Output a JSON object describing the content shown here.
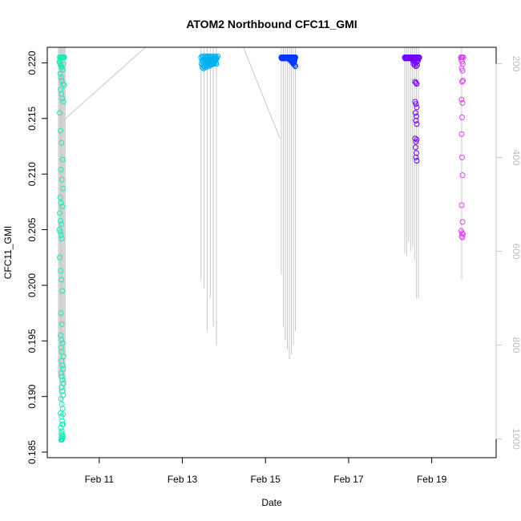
{
  "chart_data": {
    "type": "scatter",
    "title": "ATOM2 Northbound CFC11_GMI",
    "xlabel": "Date",
    "ylabel": "CFC11_GMI",
    "x_ticks": [
      "Feb 11",
      "Feb 13",
      "Feb 15",
      "Feb 17",
      "Feb 19"
    ],
    "x_tick_days": [
      11,
      13,
      15,
      17,
      19
    ],
    "xlim_days": [
      9.75,
      20.55
    ],
    "y_ticks": [
      0.185,
      0.19,
      0.195,
      0.2,
      0.205,
      0.21,
      0.215,
      0.22
    ],
    "ylim": [
      0.1845,
      0.2214
    ],
    "secondary_y_ticks": [
      200,
      400,
      600,
      800,
      1000
    ],
    "secondary_ylim": [
      1040,
      165
    ],
    "grid": false,
    "marker": "open-circle",
    "flight_track_color": "#c8c8c8",
    "series": [
      {
        "color": "#1de9b6",
        "day": 10.15,
        "x": [
          10.05,
          10.06,
          10.07,
          10.08,
          10.09,
          10.1,
          10.11,
          10.12,
          10.13,
          10.14,
          10.15,
          10.16,
          10.04,
          10.05,
          10.06,
          10.07,
          10.08,
          10.1,
          10.12,
          10.14,
          10.06,
          10.08,
          10.1,
          10.13,
          10.16,
          10.07,
          10.09,
          10.11,
          10.14,
          10.05,
          10.07,
          10.09,
          10.12,
          10.08,
          10.1,
          10.13,
          10.06,
          10.08,
          10.11,
          10.05,
          10.07,
          10.09,
          10.04,
          10.06,
          10.08,
          10.1,
          10.05,
          10.07,
          10.09,
          10.11,
          10.08,
          10.1,
          10.07,
          10.09,
          10.12,
          10.08,
          10.1,
          10.14,
          10.09,
          10.11,
          10.13,
          10.08,
          10.1,
          10.12,
          10.14,
          10.09,
          10.11,
          10.13,
          10.08,
          10.1,
          10.12,
          10.07,
          10.09,
          10.11,
          10.13,
          10.08,
          10.1,
          10.12,
          10.09,
          10.11,
          10.08,
          10.1,
          10.12,
          10.09,
          10.11,
          10.13,
          10.1,
          10.12
        ],
        "y": [
          0.2205,
          0.2205,
          0.2205,
          0.2205,
          0.2205,
          0.2205,
          0.2205,
          0.2205,
          0.2205,
          0.2205,
          0.2205,
          0.2205,
          0.2201,
          0.22,
          0.2199,
          0.2198,
          0.2197,
          0.2196,
          0.2194,
          0.2199,
          0.219,
          0.2187,
          0.2184,
          0.2181,
          0.218,
          0.2176,
          0.2172,
          0.2168,
          0.2165,
          0.2155,
          0.2139,
          0.2128,
          0.2113,
          0.2104,
          0.2095,
          0.2087,
          0.2079,
          0.2074,
          0.2071,
          0.2065,
          0.2058,
          0.2055,
          0.205,
          0.2048,
          0.2045,
          0.2042,
          0.2025,
          0.2013,
          0.2005,
          0.1995,
          0.1975,
          0.1965,
          0.1955,
          0.1951,
          0.1948,
          0.1944,
          0.194,
          0.1936,
          0.1932,
          0.1928,
          0.1925,
          0.1921,
          0.1918,
          0.1915,
          0.1912,
          0.1908,
          0.1905,
          0.1901,
          0.1898,
          0.1893,
          0.1889,
          0.1885,
          0.1882,
          0.1878,
          0.1875,
          0.1872,
          0.1869,
          0.1866,
          0.1864,
          0.1862,
          0.1861,
          0.1862,
          0.1864,
          0.1867,
          0.1875,
          0.1884,
          0.1861,
          0.1863
        ]
      },
      {
        "color": "#00b0f0",
        "day": 13.6,
        "x": [
          13.45,
          13.48,
          13.5,
          13.52,
          13.55,
          13.58,
          13.6,
          13.62,
          13.65,
          13.68,
          13.7,
          13.72,
          13.75,
          13.78,
          13.8,
          13.82,
          13.85,
          13.47,
          13.5,
          13.53,
          13.56,
          13.59,
          13.62,
          13.65,
          13.68,
          13.71,
          13.74,
          13.77,
          13.8,
          13.46,
          13.49,
          13.52,
          13.55,
          13.58,
          13.61,
          13.64,
          13.67,
          13.7,
          13.73,
          13.76,
          13.79,
          13.82,
          13.48,
          13.51,
          13.54,
          13.57,
          13.6,
          13.63,
          13.66,
          13.69,
          13.72,
          13.75,
          13.78,
          13.81,
          13.5,
          13.53,
          13.56,
          13.59,
          13.62,
          13.65,
          13.68,
          13.71,
          13.74,
          13.77,
          13.8,
          13.83
        ],
        "y": [
          0.2205,
          0.2206,
          0.2205,
          0.2204,
          0.2206,
          0.2205,
          0.2206,
          0.2205,
          0.2206,
          0.2204,
          0.2205,
          0.2206,
          0.2205,
          0.2206,
          0.2204,
          0.2205,
          0.2206,
          0.2202,
          0.2201,
          0.2203,
          0.2202,
          0.22,
          0.2202,
          0.2203,
          0.2201,
          0.2202,
          0.2203,
          0.2201,
          0.2202,
          0.2199,
          0.2198,
          0.2197,
          0.2199,
          0.2198,
          0.22,
          0.2199,
          0.2198,
          0.2201,
          0.2199,
          0.22,
          0.2201,
          0.2199,
          0.2196,
          0.2195,
          0.2197,
          0.2196,
          0.2198,
          0.2197,
          0.2199,
          0.2198,
          0.22,
          0.2199,
          0.2201,
          0.22,
          0.2203,
          0.2204,
          0.2203,
          0.2204,
          0.2203,
          0.2204,
          0.2203,
          0.2204,
          0.2203,
          0.2204,
          0.2203,
          0.2204
        ]
      },
      {
        "color": "#0038ff",
        "day": 15.55,
        "x": [
          15.38,
          15.4,
          15.42,
          15.44,
          15.46,
          15.48,
          15.5,
          15.52,
          15.54,
          15.56,
          15.58,
          15.6,
          15.62,
          15.64,
          15.66,
          15.68,
          15.7,
          15.72,
          15.39,
          15.41,
          15.43,
          15.45,
          15.47,
          15.49,
          15.51,
          15.53,
          15.55,
          15.57,
          15.59,
          15.61,
          15.63,
          15.65,
          15.67,
          15.69,
          15.71,
          15.6,
          15.62,
          15.64,
          15.66,
          15.68,
          15.7,
          15.65,
          15.67,
          15.69,
          15.7,
          15.72
        ],
        "y": [
          0.2205,
          0.2205,
          0.2205,
          0.2205,
          0.2205,
          0.2205,
          0.2205,
          0.2205,
          0.2205,
          0.2205,
          0.2205,
          0.2205,
          0.2205,
          0.2205,
          0.2205,
          0.2205,
          0.2205,
          0.2205,
          0.2204,
          0.2204,
          0.2204,
          0.2204,
          0.2204,
          0.2204,
          0.2204,
          0.2204,
          0.2204,
          0.2204,
          0.2204,
          0.2204,
          0.2204,
          0.2204,
          0.2204,
          0.2204,
          0.2204,
          0.2202,
          0.2202,
          0.2201,
          0.2202,
          0.2201,
          0.2202,
          0.22,
          0.2199,
          0.22,
          0.2198,
          0.2197
        ]
      },
      {
        "color": "#7000ff",
        "day": 18.6,
        "x": [
          18.35,
          18.38,
          18.4,
          18.42,
          18.45,
          18.48,
          18.5,
          18.52,
          18.55,
          18.58,
          18.6,
          18.62,
          18.65,
          18.68,
          18.7,
          18.36,
          18.39,
          18.42,
          18.45,
          18.48,
          18.51,
          18.54,
          18.57,
          18.6,
          18.63,
          18.66,
          18.69,
          18.55,
          18.58,
          18.61,
          18.64,
          18.67,
          18.56,
          18.59,
          18.62,
          18.65,
          18.6,
          18.62,
          18.64,
          18.6,
          18.62,
          18.64,
          18.61,
          18.63,
          18.62,
          18.64,
          18.6,
          18.62,
          18.64,
          18.61,
          18.63,
          18.62,
          18.64
        ],
        "y": [
          0.2205,
          0.2205,
          0.2205,
          0.2205,
          0.2205,
          0.2205,
          0.2205,
          0.2205,
          0.2205,
          0.2205,
          0.2205,
          0.2205,
          0.2205,
          0.2205,
          0.2205,
          0.2204,
          0.2204,
          0.2204,
          0.2204,
          0.2204,
          0.2204,
          0.2204,
          0.2204,
          0.2204,
          0.2204,
          0.2204,
          0.2204,
          0.2202,
          0.2201,
          0.22,
          0.2201,
          0.2202,
          0.2199,
          0.2198,
          0.2197,
          0.2198,
          0.2183,
          0.2182,
          0.2181,
          0.2165,
          0.2163,
          0.216,
          0.2155,
          0.2152,
          0.2148,
          0.2145,
          0.2132,
          0.2129,
          0.2131,
          0.2124,
          0.2119,
          0.2115,
          0.2112
        ]
      },
      {
        "color": "#e040fb",
        "day": 19.73,
        "x": [
          19.7,
          19.72,
          19.74,
          19.76,
          19.71,
          19.73,
          19.75,
          19.72,
          19.74,
          19.73,
          19.75,
          19.72,
          19.74,
          19.73,
          19.72,
          19.73,
          19.74,
          19.72,
          19.74,
          19.71,
          19.73,
          19.75,
          19.72,
          19.74
        ],
        "y": [
          0.2205,
          0.2205,
          0.2205,
          0.2205,
          0.2203,
          0.2201,
          0.2199,
          0.2195,
          0.2193,
          0.2183,
          0.2184,
          0.2167,
          0.2164,
          0.2151,
          0.2136,
          0.2115,
          0.2099,
          0.2072,
          0.2057,
          0.2049,
          0.2047,
          0.2046,
          0.2044,
          0.2043
        ]
      }
    ]
  }
}
